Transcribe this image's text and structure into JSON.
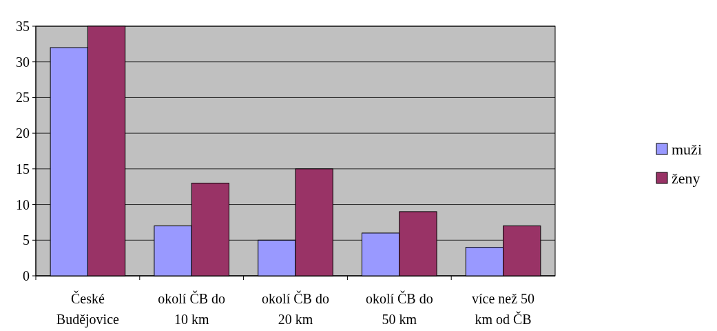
{
  "chart_data": {
    "type": "bar",
    "categories": [
      "České Budějovice",
      "okolí ČB do 10 km",
      "okolí ČB do 20 km",
      "okolí ČB do 50 km",
      "více než 50 km od ČB"
    ],
    "series": [
      {
        "name": "muži",
        "color": "#9999ff",
        "values": [
          32,
          7,
          5,
          6,
          4
        ]
      },
      {
        "name": "ženy",
        "color": "#993366",
        "values": [
          35,
          13,
          15,
          9,
          7
        ]
      }
    ],
    "ylim": [
      0,
      35
    ],
    "yticks": [
      0,
      5,
      10,
      15,
      20,
      25,
      30,
      35
    ],
    "grid": "y",
    "legend": "right"
  }
}
